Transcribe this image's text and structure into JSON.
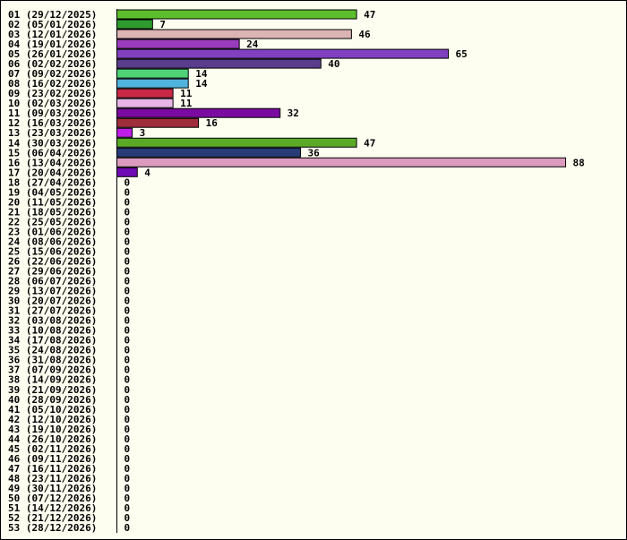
{
  "chart_data": {
    "type": "bar",
    "orientation": "horizontal",
    "categories": [
      "01 (29/12/2025)",
      "02 (05/01/2026)",
      "03 (12/01/2026)",
      "04 (19/01/2026)",
      "05 (26/01/2026)",
      "06 (02/02/2026)",
      "07 (09/02/2026)",
      "08 (16/02/2026)",
      "09 (23/02/2026)",
      "10 (02/03/2026)",
      "11 (09/03/2026)",
      "12 (16/03/2026)",
      "13 (23/03/2026)",
      "14 (30/03/2026)",
      "15 (06/04/2026)",
      "16 (13/04/2026)",
      "17 (20/04/2026)",
      "18 (27/04/2026)",
      "19 (04/05/2026)",
      "20 (11/05/2026)",
      "21 (18/05/2026)",
      "22 (25/05/2026)",
      "23 (01/06/2026)",
      "24 (08/06/2026)",
      "25 (15/06/2026)",
      "26 (22/06/2026)",
      "27 (29/06/2026)",
      "28 (06/07/2026)",
      "29 (13/07/2026)",
      "30 (20/07/2026)",
      "31 (27/07/2026)",
      "32 (03/08/2026)",
      "33 (10/08/2026)",
      "34 (17/08/2026)",
      "35 (24/08/2026)",
      "36 (31/08/2026)",
      "37 (07/09/2026)",
      "38 (14/09/2026)",
      "39 (21/09/2026)",
      "40 (28/09/2026)",
      "41 (05/10/2026)",
      "42 (12/10/2026)",
      "43 (19/10/2026)",
      "44 (26/10/2026)",
      "45 (02/11/2026)",
      "46 (09/11/2026)",
      "47 (16/11/2026)",
      "48 (23/11/2026)",
      "49 (30/11/2026)",
      "50 (07/12/2026)",
      "51 (14/12/2026)",
      "52 (21/12/2026)",
      "53 (28/12/2026)"
    ],
    "values": [
      47,
      7,
      46,
      24,
      65,
      40,
      14,
      14,
      11,
      11,
      32,
      16,
      3,
      47,
      36,
      88,
      4,
      0,
      0,
      0,
      0,
      0,
      0,
      0,
      0,
      0,
      0,
      0,
      0,
      0,
      0,
      0,
      0,
      0,
      0,
      0,
      0,
      0,
      0,
      0,
      0,
      0,
      0,
      0,
      0,
      0,
      0,
      0,
      0,
      0,
      0,
      0,
      0
    ],
    "colors": [
      "#5dbe2d",
      "#2e9b2e",
      "#dcb4b4",
      "#9b3cbe",
      "#8040c0",
      "#5a3c8c",
      "#50d278",
      "#50b4dc",
      "#c82846",
      "#e6b4e6",
      "#7a0aa0",
      "#a02d3c",
      "#be1ee6",
      "#5aaa28",
      "#283c78",
      "#dc9bbe",
      "#6e0ab4"
    ]
  }
}
